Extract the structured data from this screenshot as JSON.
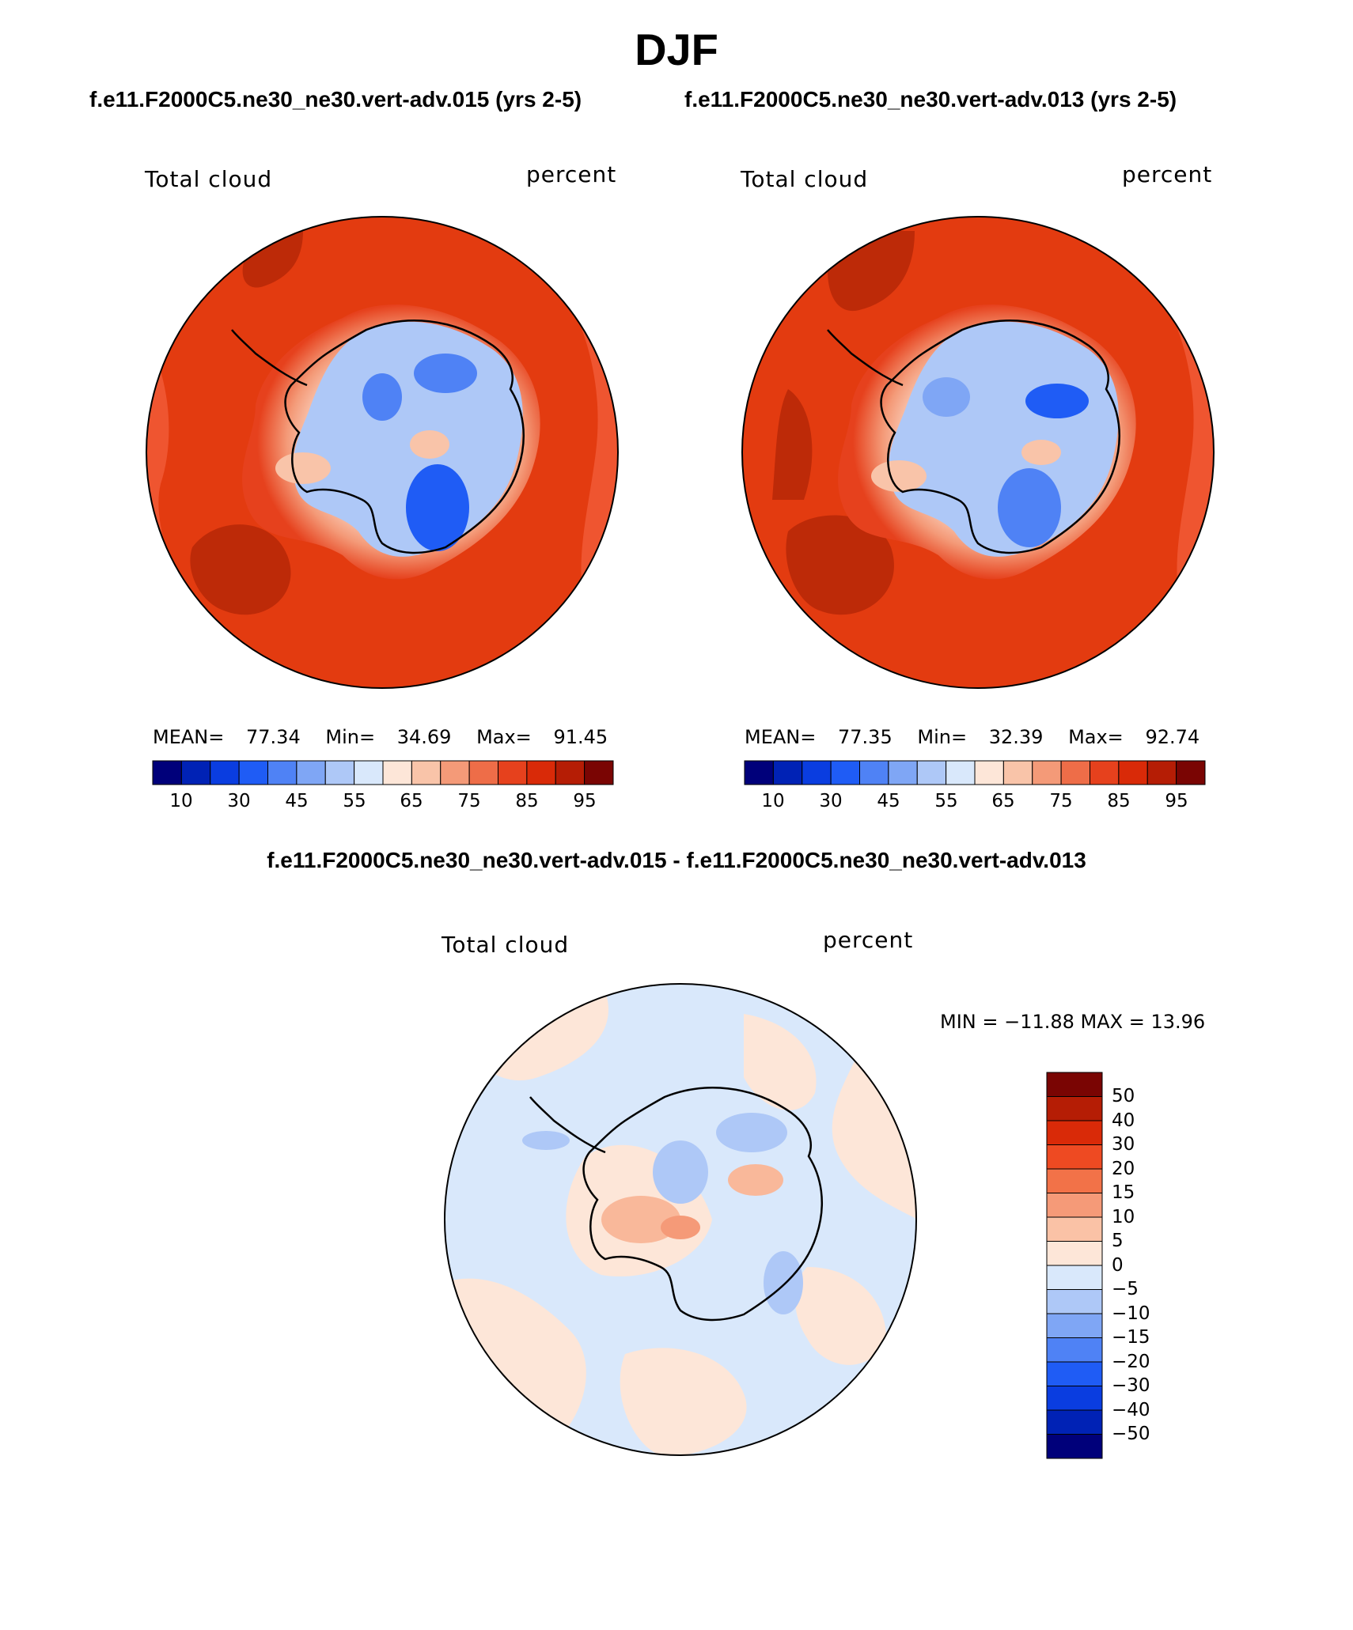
{
  "page": {
    "title": "DJF",
    "diff_title": "f.e11.F2000C5.ne30_ne30.vert-adv.015 - f.e11.F2000C5.ne30_ne30.vert-adv.013"
  },
  "panels": [
    {
      "case": "f.e11.F2000C5.ne30_ne30.vert-adv.015 (yrs 2-5)",
      "variable": "Total cloud",
      "units": "percent",
      "mean_label": "MEAN=",
      "mean": "77.34",
      "min_label": "Min=",
      "min": "34.69",
      "max_label": "Max=",
      "max": "91.45"
    },
    {
      "case": "f.e11.F2000C5.ne30_ne30.vert-adv.013 (yrs 2-5)",
      "variable": "Total cloud",
      "units": "percent",
      "mean_label": "MEAN=",
      "mean": "77.35",
      "min_label": "Min=",
      "min": "32.39",
      "max_label": "Max=",
      "max": "92.74"
    }
  ],
  "diff": {
    "variable": "Total cloud",
    "units": "percent",
    "minmax_text": "MIN = −11.88 MAX =   13.96"
  },
  "colorbar_abs": {
    "ticks": [
      "10",
      "30",
      "45",
      "55",
      "65",
      "75",
      "85",
      "95"
    ],
    "colors": [
      "#00007a",
      "#0022b5",
      "#0a3de0",
      "#1f5cf5",
      "#4f82f5",
      "#7fa6f5",
      "#aec8f7",
      "#d9e8fb",
      "#fde6d8",
      "#f9c4a9",
      "#f49a78",
      "#ee6d48",
      "#e6411d",
      "#d92a08",
      "#b51d05",
      "#7a0503"
    ]
  },
  "colorbar_diff": {
    "ticks": [
      "50",
      "40",
      "30",
      "20",
      "15",
      "10",
      "5",
      "0",
      "−5",
      "−10",
      "−15",
      "−20",
      "−30",
      "−40",
      "−50"
    ],
    "colors": [
      "#7a0503",
      "#b51d05",
      "#d92a08",
      "#ee4a22",
      "#f27248",
      "#f59a78",
      "#fac2a6",
      "#fde6d8",
      "#d9e8fb",
      "#aec8f7",
      "#7fa6f5",
      "#4f82f5",
      "#1f5cf5",
      "#0a3de0",
      "#0022b5",
      "#00007a"
    ]
  },
  "map_colors": {
    "ocean_abs": "#e33b10",
    "ocean_abs_dark": "#bd2a08",
    "ocean_abs_light": "#f0603a",
    "diff_background": "#d9e8fb",
    "diff_positive": "#fde6d8",
    "diff_positive_strong": "#f9b89a",
    "diff_negative": "#aec8f7"
  }
}
